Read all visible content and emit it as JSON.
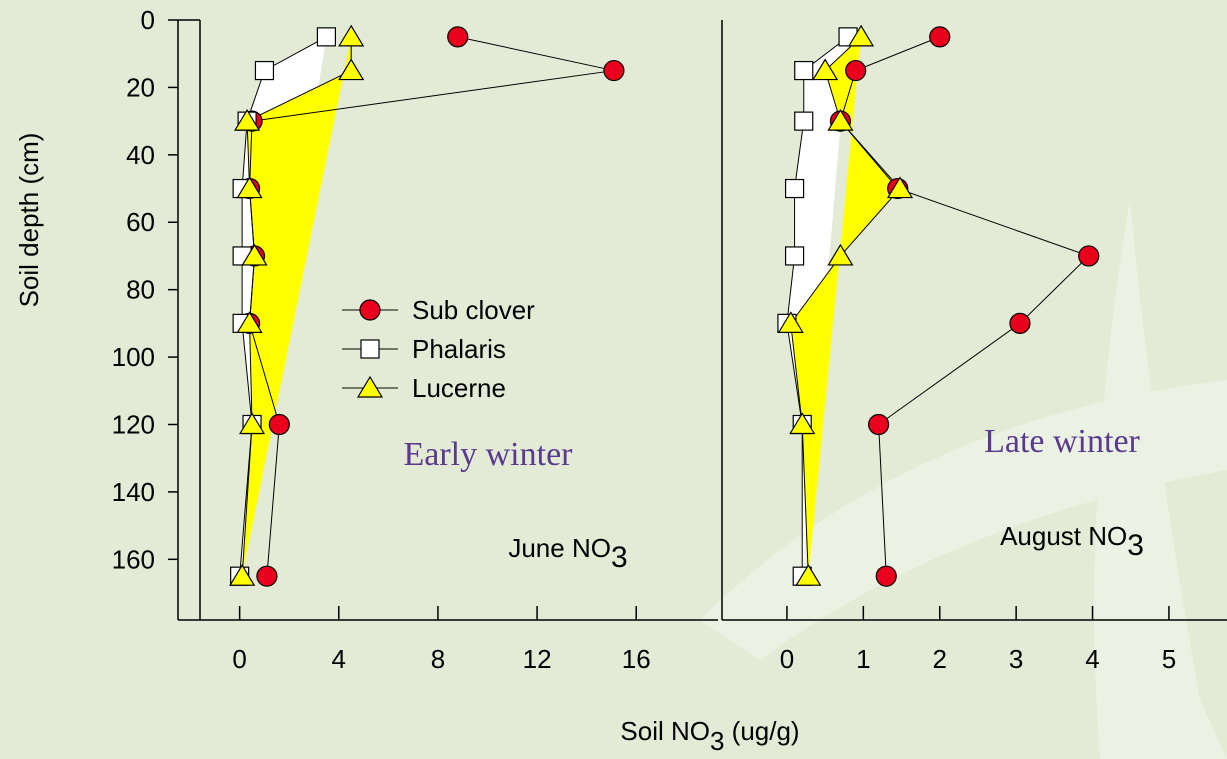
{
  "chart_data": [
    {
      "type": "line",
      "y": [
        5,
        15,
        30,
        50,
        70,
        90,
        120,
        165
      ],
      "ylim": [
        0,
        178
      ],
      "yticks": [
        0,
        20,
        40,
        60,
        80,
        100,
        120,
        140,
        160
      ],
      "inverted_y": true,
      "ylabel": "Soil depth (cm)",
      "xlabel": {
        "text": "Soil NO",
        "subscript": "3",
        "suffix": " (ug/g)"
      },
      "xlim": [
        -1.6,
        19.3
      ],
      "xticks": [
        0,
        4,
        8,
        12,
        16
      ],
      "season": "Early winter",
      "annotation": {
        "text": "June NO",
        "subscript": "3"
      },
      "legend": "center",
      "series": [
        {
          "name": "Sub clover",
          "color": "#e8001c",
          "marker": "circle",
          "x": [
            8.8,
            15.1,
            0.5,
            0.4,
            0.6,
            0.4,
            1.6,
            1.1
          ]
        },
        {
          "name": "Phalaris",
          "color": "#ffffff",
          "marker": "square",
          "fill": "#ffffff",
          "x": [
            3.5,
            1.0,
            0.3,
            0.1,
            0.1,
            0.1,
            0.5,
            0.0
          ]
        },
        {
          "name": "Lucerne",
          "color": "#ffff00",
          "marker": "triangle",
          "fill": "#ffff00",
          "x": [
            4.5,
            4.5,
            0.3,
            0.4,
            0.6,
            0.4,
            0.5,
            0.1
          ]
        }
      ]
    },
    {
      "type": "line",
      "y": [
        5,
        15,
        30,
        50,
        70,
        90,
        120,
        165
      ],
      "ylim": [
        0,
        178
      ],
      "inverted_y": true,
      "xlim": [
        -0.85,
        5.76
      ],
      "xticks": [
        0,
        1,
        2,
        3,
        4,
        5
      ],
      "season": "Late winter",
      "annotation": {
        "text": "August NO",
        "subscript": "3"
      },
      "series": [
        {
          "color": "#e8001c",
          "marker": "circle",
          "x": [
            2.0,
            0.9,
            0.7,
            1.45,
            3.95,
            3.05,
            1.2,
            1.3
          ]
        },
        {
          "color": "#ffffff",
          "marker": "square",
          "fill": "#ffffff",
          "x": [
            0.8,
            0.22,
            0.22,
            0.1,
            0.1,
            0.0,
            0.2,
            0.2
          ]
        },
        {
          "color": "#ffff00",
          "marker": "triangle",
          "fill": "#ffff00",
          "x": [
            0.97,
            0.5,
            0.7,
            1.48,
            0.7,
            0.05,
            0.2,
            0.28
          ]
        }
      ]
    }
  ]
}
